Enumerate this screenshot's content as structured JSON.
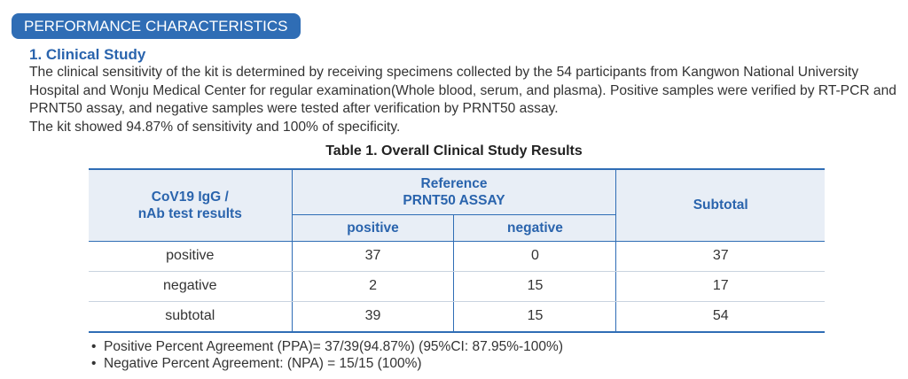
{
  "section_badge": "PERFORMANCE CHARACTERISTICS",
  "heading": "1. Clinical Study",
  "paragraph": "The clinical sensitivity of the kit is determined by receiving specimens collected by the 54 participants from Kangwon National University Hospital and Wonju Medical Center for regular examination(Whole blood, serum, and plasma). Positive samples were verified by RT-PCR and PRNT50 assay, and negative samples were tested after verification by PRNT50 assay.",
  "paragraph2": "The kit showed 94.87% of sensitivity and 100% of specificity.",
  "table": {
    "title": "Table 1. Overall Clinical Study Results",
    "col1_line1": "CoV19 IgG /",
    "col1_line2": "nAb test results",
    "ref_line1": "Reference",
    "ref_line2": "PRNT50  ASSAY",
    "sub_positive": "positive",
    "sub_negative": "negative",
    "subtotal": "Subtotal",
    "rows": [
      {
        "label": "positive",
        "pos": "37",
        "neg": "0",
        "sub": "37"
      },
      {
        "label": "negative",
        "pos": "2",
        "neg": "15",
        "sub": "17"
      },
      {
        "label": "subtotal",
        "pos": "39",
        "neg": "15",
        "sub": "54"
      }
    ]
  },
  "bullets": [
    "Positive Percent Agreement (PPA)= 37/39(94.87%) (95%CI: 87.95%-100%)",
    "Negative Percent Agreement: (NPA) = 15/15 (100%)"
  ]
}
